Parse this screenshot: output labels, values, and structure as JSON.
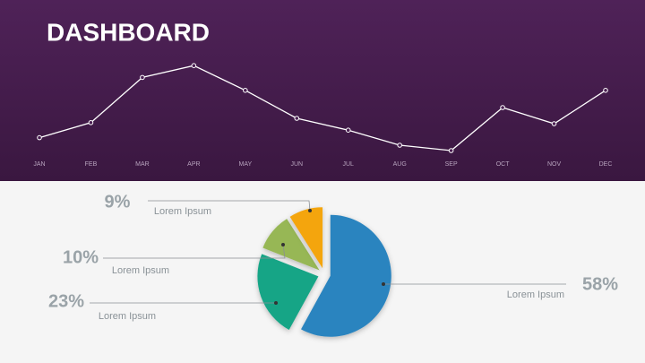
{
  "chart_data": [
    {
      "type": "line",
      "title": "DASHBOARD",
      "categories": [
        "JAN",
        "FEB",
        "MAR",
        "APR",
        "MAY",
        "JUN",
        "JUL",
        "AUG",
        "SEP",
        "OCT",
        "NOV",
        "DEC"
      ],
      "values": [
        22,
        36,
        78,
        89,
        66,
        40,
        29,
        15,
        10,
        50,
        35,
        66
      ],
      "color": "#ffffff",
      "ylim": [
        0,
        100
      ]
    },
    {
      "type": "pie",
      "categories": [
        "Lorem Ipsum",
        "Lorem Ipsum",
        "Lorem Ipsum",
        "Lorem Ipsum"
      ],
      "values": [
        58,
        23,
        10,
        9
      ],
      "value_labels": [
        "58%",
        "23%",
        "10%",
        "9%"
      ],
      "colors": [
        "#2a84bf",
        "#13a586",
        "#97b755",
        "#f4a510"
      ]
    }
  ]
}
